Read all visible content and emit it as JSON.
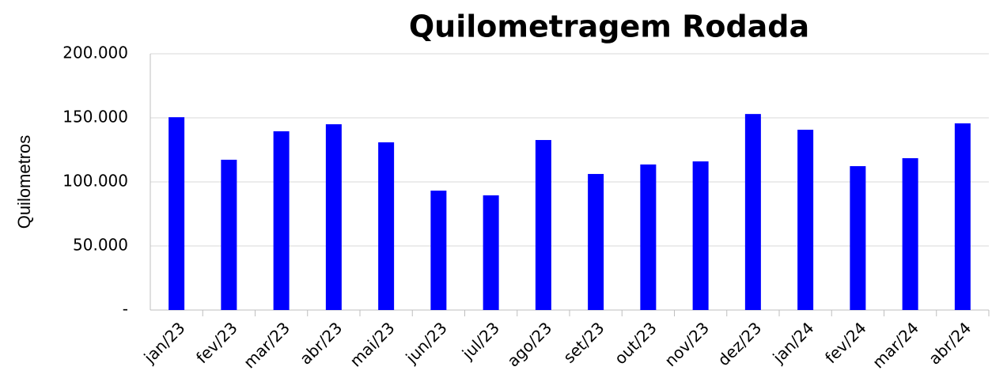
{
  "chart_data": {
    "type": "bar",
    "title": "Quilometragem Rodada",
    "y_label": "Quilometros",
    "categories": [
      "jan/23",
      "fev/23",
      "mar/23",
      "abr/23",
      "mai/23",
      "jun/23",
      "jul/23",
      "ago/23",
      "set/23",
      "out/23",
      "nov/23",
      "dez/23",
      "jan/24",
      "fev/24",
      "mar/24",
      "abr/24"
    ],
    "values": [
      150500,
      117300,
      139500,
      145000,
      130900,
      93200,
      89500,
      132700,
      106200,
      113600,
      116000,
      153000,
      140700,
      112300,
      118500,
      145700
    ],
    "color": "#0000ff",
    "ylim": [
      0,
      200000
    ],
    "yticks": [
      {
        "value": 0,
        "label": "-"
      },
      {
        "value": 50000,
        "label": "50.000"
      },
      {
        "value": 100000,
        "label": "100.000"
      },
      {
        "value": 150000,
        "label": "150.000"
      },
      {
        "value": 200000,
        "label": "200.000"
      }
    ],
    "grid": true
  }
}
